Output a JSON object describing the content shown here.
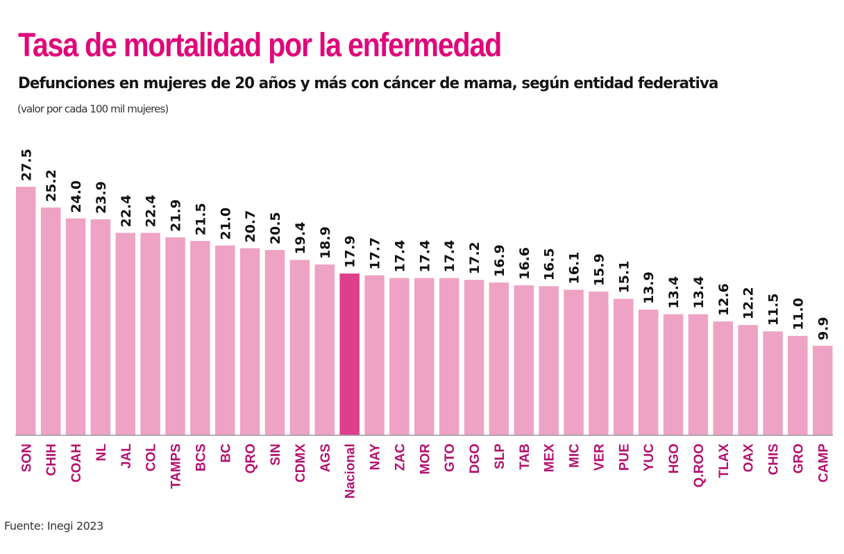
{
  "chart_data": {
    "type": "bar",
    "title": "Tasa de mortalidad por la enfermedad",
    "subtitle": "Defunciones en mujeres de 20 años y más con cáncer de mama, según entidad federativa",
    "note": "(valor por cada 100 mil mujeres)",
    "source": "Fuente: Inegi 2023",
    "xlabel": "",
    "ylabel": "",
    "ylim": [
      0,
      27.5
    ],
    "grid": false,
    "legend": "none",
    "highlight_category": "Nacional",
    "colors": {
      "bar": "#eea3c4",
      "highlight": "#de3f8a",
      "title": "#e0077a",
      "category_label": "#b5106e",
      "value_label": "#111111",
      "axis": "#9a9a9a"
    },
    "categories": [
      "SON",
      "CHIH",
      "COAH",
      "NL",
      "JAL",
      "COL",
      "TAMPS",
      "BCS",
      "BC",
      "QRO",
      "SIN",
      "CDMX",
      "AGS",
      "Nacional",
      "NAY",
      "ZAC",
      "MOR",
      "GTO",
      "DGO",
      "SLP",
      "TAB",
      "MEX",
      "MIC",
      "VER",
      "PUE",
      "YUC",
      "HGO",
      "Q.ROO",
      "TLAX",
      "OAX",
      "CHIS",
      "GRO",
      "CAMP"
    ],
    "values": [
      27.5,
      25.2,
      24.0,
      23.9,
      22.4,
      22.4,
      21.9,
      21.5,
      21.0,
      20.7,
      20.5,
      19.4,
      18.9,
      17.9,
      17.7,
      17.4,
      17.4,
      17.4,
      17.2,
      16.9,
      16.6,
      16.5,
      16.1,
      15.9,
      15.1,
      13.9,
      13.4,
      13.4,
      12.6,
      12.2,
      11.5,
      11.0,
      9.9
    ],
    "value_labels": [
      "27.5",
      "25.2",
      "24.0",
      "23.9",
      "22.4",
      "22.4",
      "21.9",
      "21.5",
      "21.0",
      "20.7",
      "20.5",
      "19.4",
      "18.9",
      "17.9",
      "17.7",
      "17.4",
      "17.4",
      "17.4",
      "17.2",
      "16.9",
      "16.6",
      "16.5",
      "16.1",
      "15.9",
      "15.1",
      "13.9",
      "13.4",
      "13.4",
      "12.6",
      "12.2",
      "11.5",
      "11.0",
      "9.9"
    ]
  }
}
